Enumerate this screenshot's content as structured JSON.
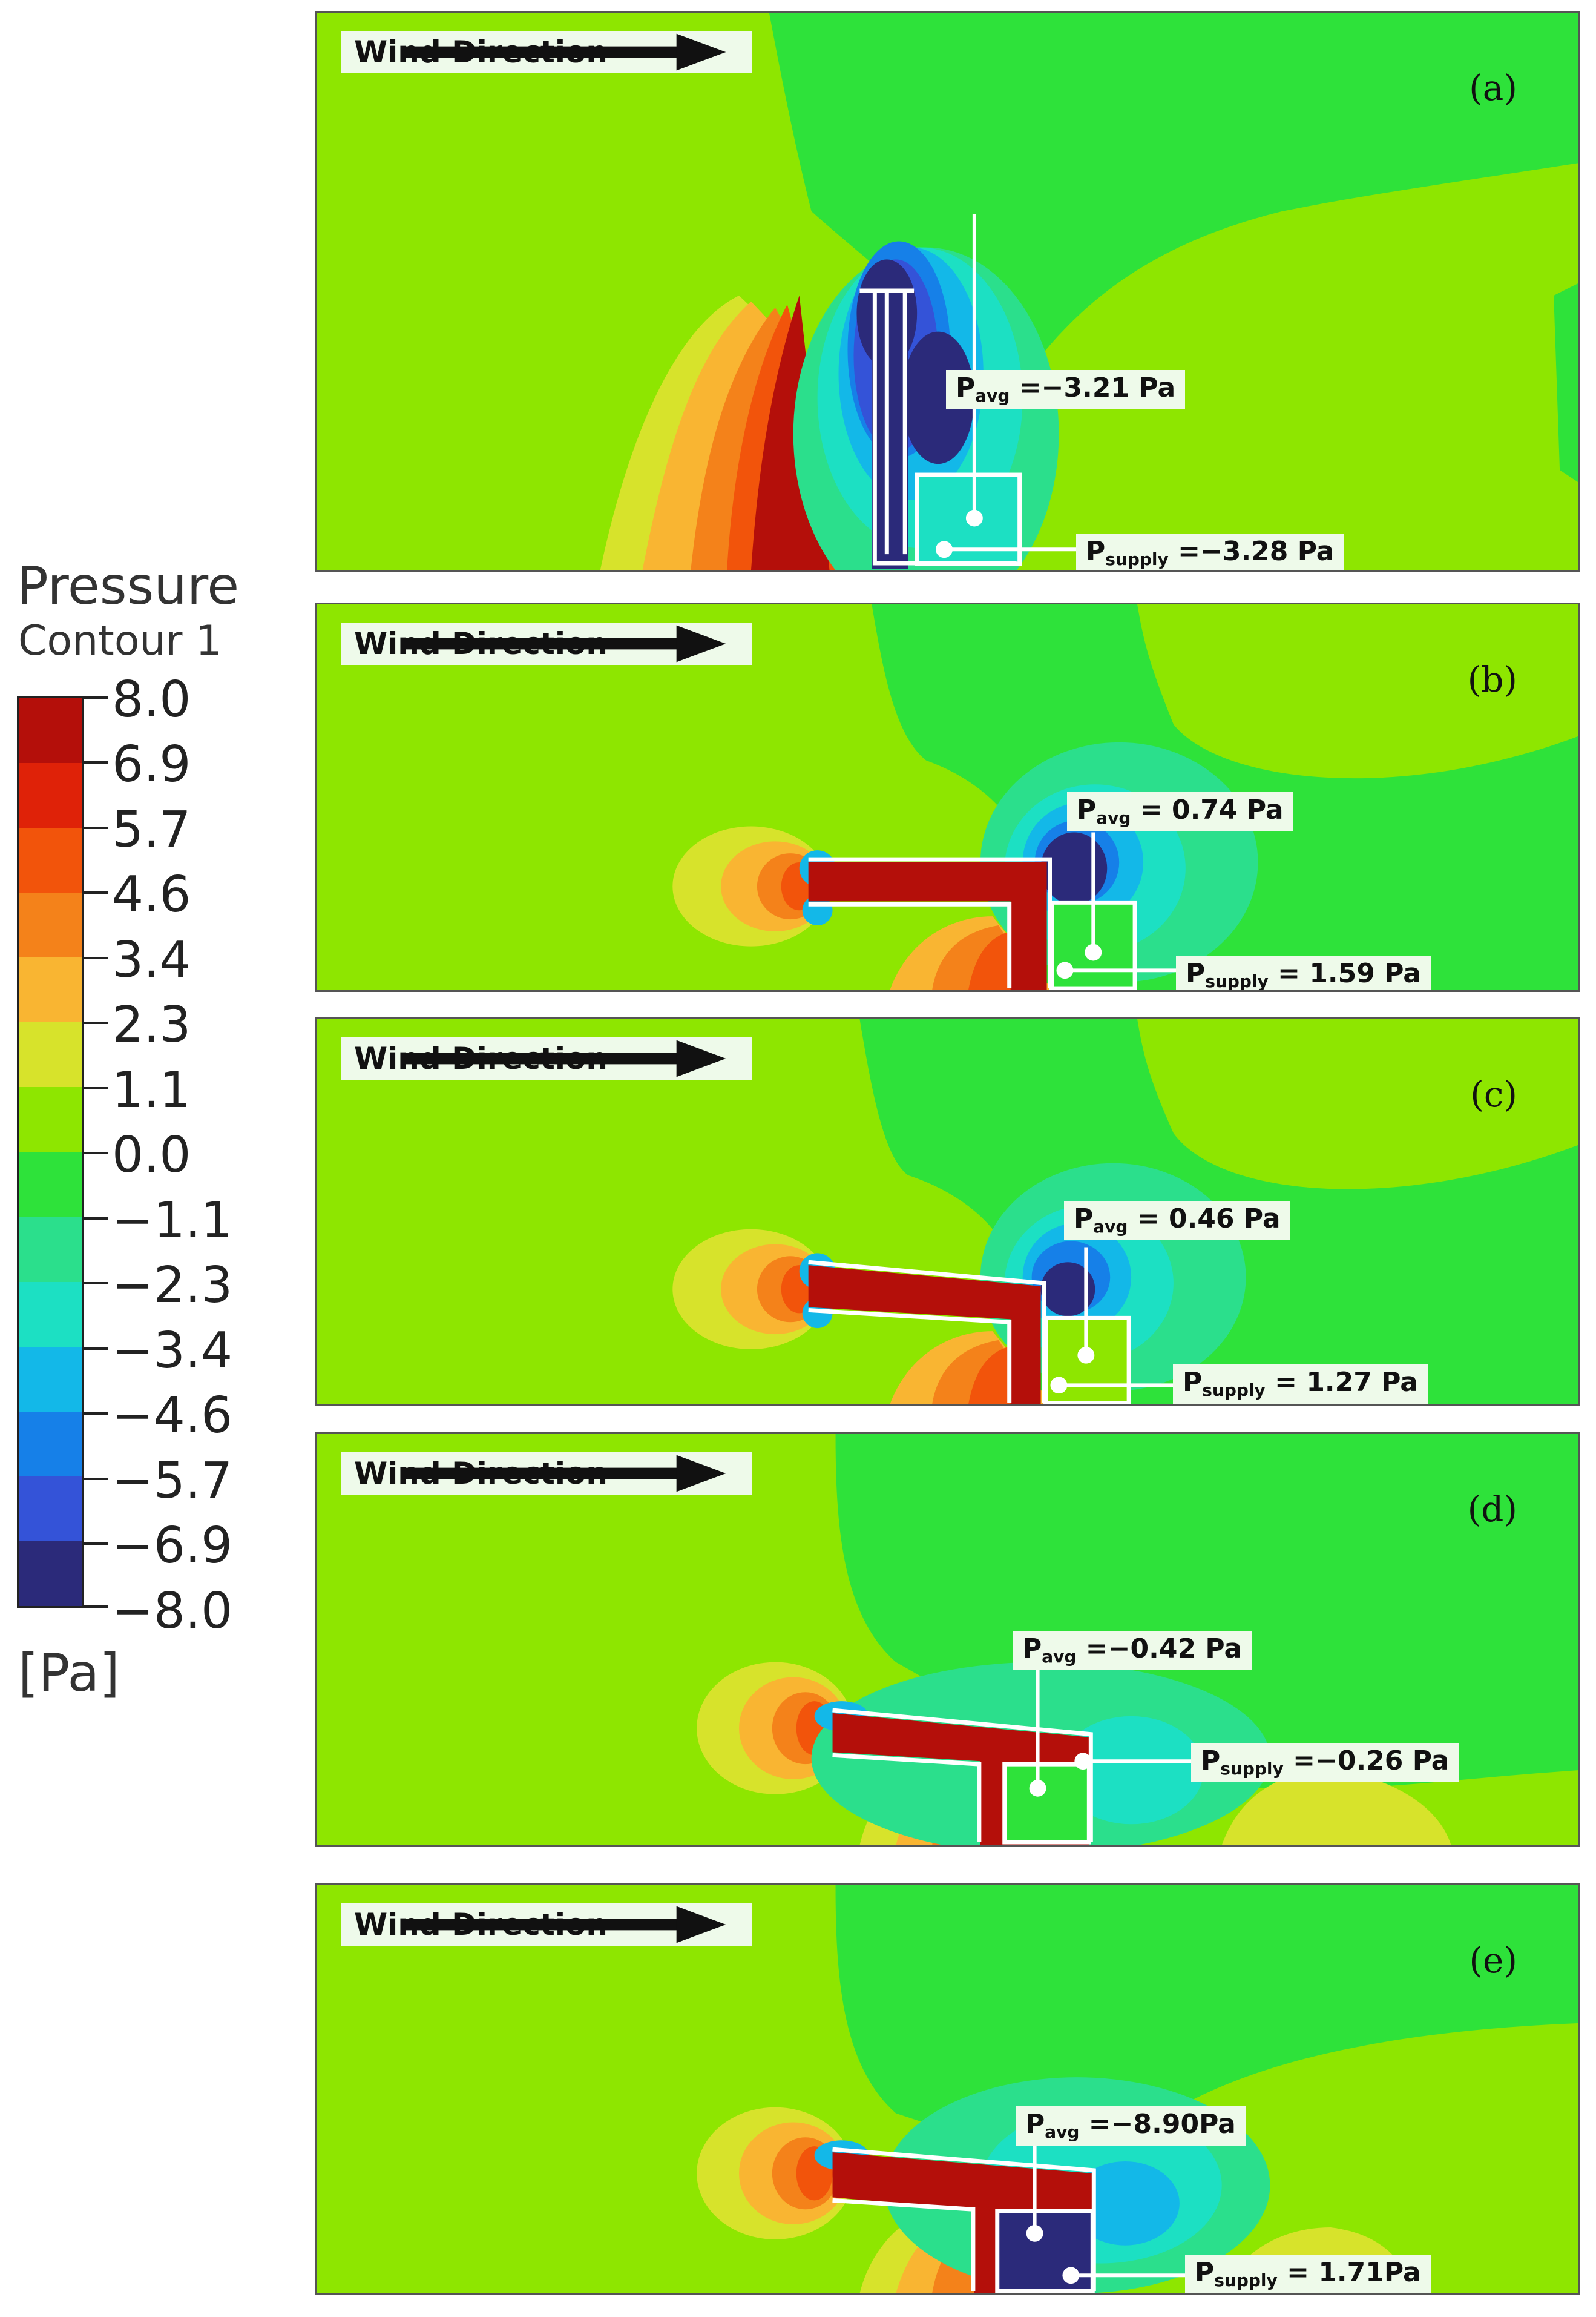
{
  "legend": {
    "title": "Pressure",
    "subtitle": "Contour 1",
    "unit": "[Pa]",
    "labels": [
      "8.0",
      "6.9",
      "5.7",
      "4.6",
      "3.4",
      "2.3",
      "1.1",
      "0.0",
      "−1.1",
      "−2.3",
      "−3.4",
      "−4.6",
      "−5.7",
      "−6.9",
      "−8.0"
    ],
    "colors": [
      "#b40f0a",
      "#df2208",
      "#f2540b",
      "#f4821a",
      "#f9b532",
      "#d7e32b",
      "#8ee600",
      "#2ee23a",
      "#2bdf8c",
      "#1ce0c3",
      "#13b8e8",
      "#1680e8",
      "#3453d8",
      "#2b2a7a"
    ]
  },
  "panels": [
    {
      "letter": "(a)",
      "wind_label": "Wind Direction",
      "p_avg": "−3.21 Pa",
      "p_supply": "−3.28 Pa"
    },
    {
      "letter": "(b)",
      "wind_label": "Wind Direction",
      "p_avg": "0.74 Pa",
      "p_supply": "1.59 Pa"
    },
    {
      "letter": "(c)",
      "wind_label": "Wind Direction",
      "p_avg": "0.46 Pa",
      "p_supply": "1.27 Pa"
    },
    {
      "letter": "(d)",
      "wind_label": "Wind Direction",
      "p_avg": "−0.42 Pa",
      "p_supply": "−0.26 Pa"
    },
    {
      "letter": "(e)",
      "wind_label": "Wind Direction",
      "p_avg": "−8.90Pa",
      "p_supply": "1.71Pa"
    }
  ],
  "symbols": {
    "p": "P",
    "avg": "avg",
    "supply": "supply",
    "eq_tight": " =",
    "eq_loose": " = "
  }
}
